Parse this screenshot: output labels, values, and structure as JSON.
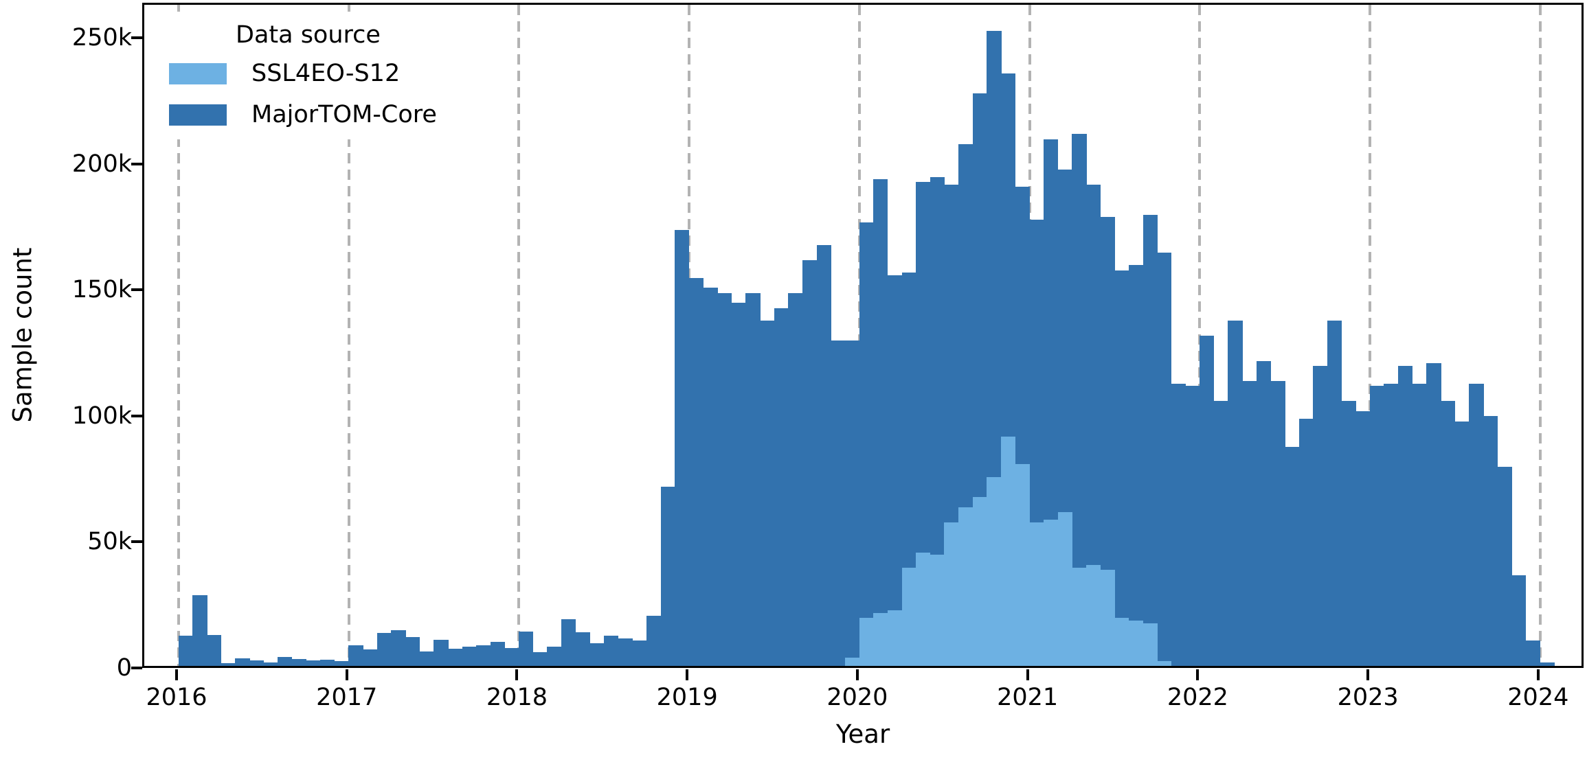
{
  "chart_data": {
    "type": "bar",
    "subtype": "monthly-histogram-overlay",
    "title": "",
    "xlabel": "Year",
    "ylabel": "Sample count",
    "x_start": "2016-01",
    "x_end": "2024-01",
    "bin_unit": "month",
    "xticks": [
      "2016",
      "2017",
      "2018",
      "2019",
      "2020",
      "2021",
      "2022",
      "2023",
      "2024"
    ],
    "yticks": [
      "0",
      "50k",
      "100k",
      "150k",
      "200k",
      "250k"
    ],
    "ytick_values_k": [
      0,
      50,
      100,
      150,
      200,
      250
    ],
    "ylim_k": [
      0,
      264
    ],
    "grid": "vertical-dashed-yearly",
    "legend": {
      "title": "Data source",
      "position": "upper-left",
      "entries": [
        {
          "label": "SSL4EO-S12",
          "color": "#6db1e3"
        },
        {
          "label": "MajorTOM-Core",
          "color": "#3272ae"
        }
      ]
    },
    "series": [
      {
        "name": "MajorTOM-Core",
        "color": "#3272ae",
        "values_k": [
          12,
          28,
          12.3,
          1.2,
          3,
          2.1,
          1.4,
          3.6,
          2.7,
          2.1,
          2.4,
          1.8,
          8.2,
          6.5,
          13.2,
          14.1,
          11.5,
          5.7,
          10.3,
          6.7,
          7.6,
          8.1,
          9.6,
          7.2,
          13.6,
          5.4,
          7.7,
          18.6,
          13.4,
          9.1,
          12.1,
          10.9,
          10,
          20,
          71,
          173,
          154,
          150,
          148,
          144,
          148,
          137,
          142,
          148,
          161,
          167,
          129,
          129,
          176,
          193,
          155,
          156,
          192,
          194,
          191,
          207,
          227,
          252,
          235,
          190,
          177,
          209,
          197,
          211,
          191,
          178,
          157,
          159,
          179,
          164,
          112,
          111,
          131,
          105,
          137,
          113,
          121,
          113,
          87,
          98,
          119,
          137,
          105,
          101,
          111,
          112,
          119,
          112,
          120,
          105,
          97,
          112,
          99,
          79,
          36,
          10,
          1.5
        ]
      },
      {
        "name": "SSL4EO-S12",
        "color": "#6db1e3",
        "values_k": [
          0,
          0,
          0,
          0,
          0,
          0,
          0,
          0,
          0,
          0,
          0,
          0,
          0,
          0,
          0,
          0,
          0,
          0,
          0,
          0,
          0,
          0,
          0,
          0,
          0,
          0,
          0,
          0,
          0,
          0,
          0,
          0,
          0,
          0,
          0,
          0,
          0,
          0,
          0,
          0,
          0,
          0,
          0,
          0,
          0,
          0,
          0,
          3.3,
          19,
          21,
          22,
          39,
          45,
          44,
          57,
          63,
          67,
          75,
          91,
          80,
          57,
          58,
          61,
          39,
          40,
          38,
          19,
          18,
          17,
          2,
          0,
          0,
          0,
          0,
          0,
          0,
          0,
          0,
          0,
          0,
          0,
          0,
          0,
          0,
          0,
          0,
          0,
          0,
          0,
          0,
          0,
          0,
          0,
          0,
          0,
          0,
          0
        ]
      }
    ]
  }
}
